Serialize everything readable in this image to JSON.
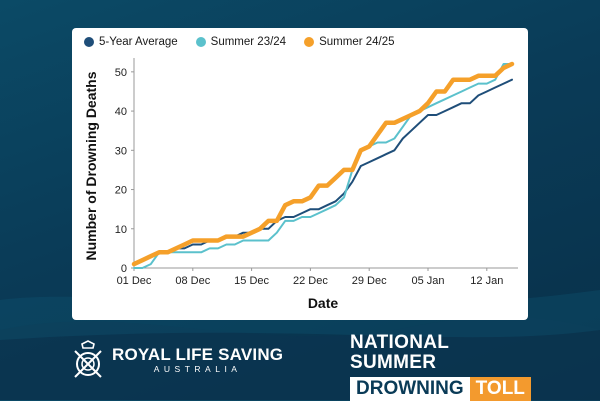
{
  "colors": {
    "five_year": "#1f4e79",
    "summer_2324": "#5bc1cc",
    "summer_2425": "#f5a02a"
  },
  "chart_data": {
    "type": "line",
    "xlabel": "Date",
    "ylabel": "Number of Drowning Deaths",
    "x_ticks": [
      "01 Dec",
      "08 Dec",
      "15 Dec",
      "22 Dec",
      "29 Dec",
      "05 Jan",
      "12 Jan"
    ],
    "ylim": [
      0,
      52
    ],
    "y_ticks": [
      0,
      10,
      20,
      30,
      40,
      50
    ],
    "legend_position": "top",
    "x_start": "01 Dec",
    "series": [
      {
        "name": "5-Year Average",
        "color": "#1f4e79",
        "values": [
          1,
          2,
          3,
          4,
          4,
          5,
          5,
          6,
          6,
          7,
          7,
          8,
          8,
          9,
          9,
          10,
          10,
          12,
          13,
          13,
          14,
          15,
          15,
          16,
          17,
          19,
          22,
          26,
          27,
          28,
          29,
          30,
          33,
          35,
          37,
          39,
          39,
          40,
          41,
          42,
          42,
          44,
          45,
          46,
          47,
          48
        ]
      },
      {
        "name": "Summer 23/24",
        "color": "#5bc1cc",
        "values": [
          0,
          0,
          1,
          4,
          4,
          4,
          4,
          4,
          4,
          5,
          5,
          6,
          6,
          7,
          7,
          7,
          7,
          9,
          12,
          12,
          13,
          13,
          14,
          15,
          16,
          18,
          25,
          30,
          31,
          32,
          32,
          33,
          36,
          39,
          40,
          41,
          42,
          43,
          44,
          45,
          46,
          47,
          47,
          48,
          52,
          52
        ]
      },
      {
        "name": "Summer 24/25",
        "color": "#f5a02a",
        "values": [
          1,
          2,
          3,
          4,
          4,
          5,
          6,
          7,
          7,
          7,
          7,
          8,
          8,
          8,
          9,
          10,
          12,
          12,
          16,
          17,
          17,
          18,
          21,
          21,
          23,
          25,
          25,
          30,
          31,
          34,
          37,
          37,
          38,
          39,
          40,
          42,
          45,
          45,
          48,
          48,
          48,
          49,
          49,
          49,
          51,
          52
        ]
      }
    ]
  },
  "brand": {
    "org_name": "ROYAL LIFE SAVING",
    "org_sub": "AUSTRALIA",
    "toll_line1": "NATIONAL SUMMER",
    "toll_word1": "DROWNING",
    "toll_word2": "TOLL"
  }
}
